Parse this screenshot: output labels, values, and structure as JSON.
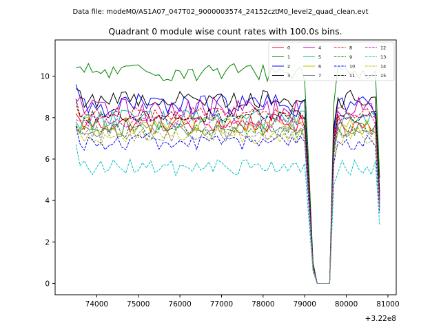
{
  "figure": {
    "suptitle": "Data file: modeM0/AS1A07_047T02_9000003574_24152cztM0_level2_quad_clean.evt"
  },
  "chart_data": {
    "type": "line",
    "title": "Quadrant 0 module wise count rates with 100.0s bins.",
    "xlabel": "",
    "ylabel": "",
    "x_offset_label": "+3.22e8",
    "xlim": [
      73000,
      81200
    ],
    "ylim": [
      -0.55,
      11.75
    ],
    "x_ticks": [
      74000,
      75000,
      76000,
      77000,
      78000,
      79000,
      80000,
      81000
    ],
    "y_ticks": [
      0,
      2,
      4,
      6,
      8,
      10
    ],
    "x_tick_labels": [
      "74000",
      "75000",
      "76000",
      "77000",
      "78000",
      "79000",
      "80000",
      "81000"
    ],
    "y_tick_labels": [
      "0",
      "2",
      "4",
      "6",
      "8",
      "10"
    ],
    "grid": false,
    "legend_position": "top-right",
    "legend_columns": 4,
    "x": [
      73500,
      73600,
      73700,
      73800,
      73900,
      74000,
      74100,
      74200,
      74300,
      74400,
      74500,
      74600,
      74700,
      74800,
      74900,
      75000,
      75100,
      75200,
      75300,
      75400,
      75500,
      75600,
      75700,
      75800,
      75900,
      76000,
      76100,
      76200,
      76300,
      76400,
      76500,
      76600,
      76700,
      76800,
      76900,
      77000,
      77100,
      77200,
      77300,
      77400,
      77500,
      77600,
      77700,
      77800,
      77900,
      78000,
      78100,
      78200,
      78300,
      78400,
      78500,
      78600,
      78700,
      78800,
      78900,
      79000,
      79100,
      79200,
      79300,
      79400,
      79500,
      79600,
      79700,
      79800,
      79900,
      80000,
      80100,
      80200,
      80300,
      80400,
      80500,
      80600,
      80700,
      80800
    ],
    "series": [
      {
        "name": "0",
        "color": "#ff0000",
        "dash": "solid",
        "base": 7.7,
        "amp": 0.45,
        "start": 8.2
      },
      {
        "name": "1",
        "color": "#008000",
        "dash": "solid",
        "base": 10.2,
        "amp": 0.45,
        "start": 10.4
      },
      {
        "name": "2",
        "color": "#0000ff",
        "dash": "solid",
        "base": 8.6,
        "amp": 0.55,
        "start": 9.6
      },
      {
        "name": "3",
        "color": "#000000",
        "dash": "solid",
        "base": 8.9,
        "amp": 0.45,
        "start": 9.4
      },
      {
        "name": "4",
        "color": "#bf00bf",
        "dash": "solid",
        "base": 8.4,
        "amp": 0.6,
        "start": 8.7
      },
      {
        "name": "5",
        "color": "#00bf9f",
        "dash": "solid",
        "base": 7.9,
        "amp": 0.5,
        "start": 7.8
      },
      {
        "name": "6",
        "color": "#bfbf00",
        "dash": "solid",
        "base": 7.6,
        "amp": 0.45,
        "start": 7.7
      },
      {
        "name": "7",
        "color": "#808080",
        "dash": "solid",
        "base": 7.5,
        "amp": 0.45,
        "start": 7.5
      },
      {
        "name": "8",
        "color": "#ff0000",
        "dash": "dashed",
        "base": 8.2,
        "amp": 0.35,
        "start": 8.6
      },
      {
        "name": "9",
        "color": "#008000",
        "dash": "dashed",
        "base": 7.4,
        "amp": 0.35,
        "start": 7.6
      },
      {
        "name": "10",
        "color": "#0000ff",
        "dash": "dashed",
        "base": 6.8,
        "amp": 0.4,
        "start": 7.6
      },
      {
        "name": "11",
        "color": "#000000",
        "dash": "dashed",
        "base": 8.1,
        "amp": 0.35,
        "start": 8.9
      },
      {
        "name": "12",
        "color": "#bf00bf",
        "dash": "dashed",
        "base": 7.8,
        "amp": 0.35,
        "start": 7.9
      },
      {
        "name": "13",
        "color": "#00bfbf",
        "dash": "dashed",
        "base": 5.6,
        "amp": 0.4,
        "start": 6.7
      },
      {
        "name": "14",
        "color": "#bfbf00",
        "dash": "dashed",
        "base": 7.1,
        "amp": 0.4,
        "start": 7.2
      },
      {
        "name": "15",
        "color": "#808080",
        "dash": "dashed",
        "base": 7.2,
        "amp": 0.4,
        "start": 7.4
      }
    ],
    "gap": {
      "drop_start": 79100,
      "zero_from": 79300,
      "zero_to": 79600,
      "rise_end": 79800,
      "end_drop_x": 80800
    }
  }
}
